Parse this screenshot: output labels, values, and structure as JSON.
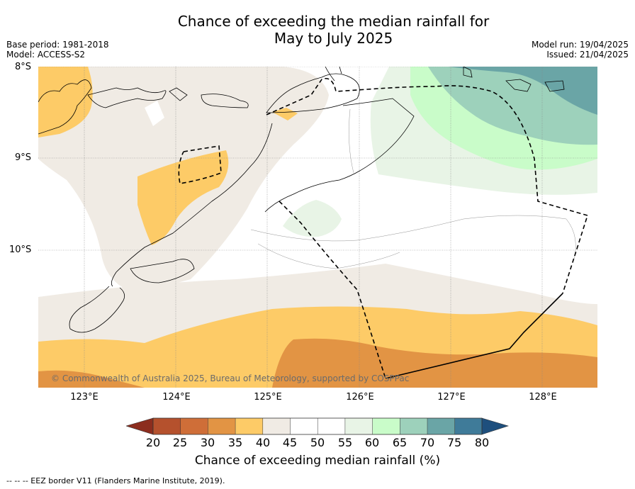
{
  "title_line1": "Chance of exceeding the median rainfall for",
  "title_line2": "May to July 2025",
  "base_period": "Base period: 1981-2018",
  "model": "Model: ACCESS-S2",
  "model_run": "Model run: 19/04/2025",
  "issued": "Issued: 21/04/2025",
  "lat_labels": [
    "8°S",
    "9°S",
    "10°S"
  ],
  "lon_labels": [
    "123°E",
    "124°E",
    "125°E",
    "126°E",
    "127°E",
    "128°E"
  ],
  "copyright": "© Commonwealth of Australia 2025, Bureau of Meteorology, supported by COSPPac",
  "colorbar": {
    "ticks": [
      "20",
      "25",
      "30",
      "35",
      "40",
      "45",
      "50",
      "55",
      "60",
      "65",
      "70",
      "75",
      "80"
    ],
    "label": "Chance of exceeding median rainfall (%)",
    "colors": {
      "below_20": "#8c2d1e",
      "20-25": "#b5512d",
      "25-30": "#cf6e38",
      "30-35": "#e29444",
      "35-40": "#fdcb67",
      "40-45": "#f0ebe4",
      "45-50": "#ffffff",
      "50-55": "#ffffff",
      "55-60": "#e8f4e6",
      "60-65": "#c9fcc9",
      "65-70": "#9dd1bb",
      "70-75": "#6aa5a6",
      "75-80": "#3f7b99",
      "above_80": "#1e4f7d"
    }
  },
  "footnote": "--  --  -- EEZ border V11 (Flanders Marine Institute, 2019)."
}
